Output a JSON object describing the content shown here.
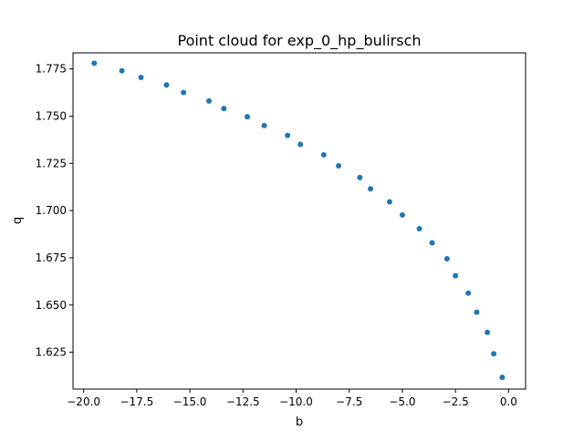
{
  "chart_data": {
    "type": "scatter",
    "title": "Point cloud for exp_0_hp_bulirsch",
    "xlabel": "b",
    "ylabel": "q",
    "xlim": [
      -20.5,
      0.8
    ],
    "ylim": [
      1.6055,
      1.7835
    ],
    "xticks": [
      -20.0,
      -17.5,
      -15.0,
      -12.5,
      -10.0,
      -7.5,
      -5.0,
      -2.5,
      0.0
    ],
    "xtick_labels": [
      "−20.0",
      "−17.5",
      "−15.0",
      "−12.5",
      "−10.0",
      "−7.5",
      "−5.0",
      "−2.5",
      "0.0"
    ],
    "yticks": [
      1.625,
      1.65,
      1.675,
      1.7,
      1.725,
      1.75,
      1.775
    ],
    "ytick_labels": [
      "1.625",
      "1.650",
      "1.675",
      "1.700",
      "1.725",
      "1.750",
      "1.775"
    ],
    "grid": false,
    "marker_color": "#1f77b4",
    "points": [
      {
        "x": -19.5,
        "y": 1.778
      },
      {
        "x": -18.2,
        "y": 1.774
      },
      {
        "x": -17.3,
        "y": 1.7705
      },
      {
        "x": -16.1,
        "y": 1.7665
      },
      {
        "x": -15.3,
        "y": 1.7625
      },
      {
        "x": -14.1,
        "y": 1.758
      },
      {
        "x": -13.4,
        "y": 1.754
      },
      {
        "x": -12.3,
        "y": 1.7497
      },
      {
        "x": -11.5,
        "y": 1.745
      },
      {
        "x": -10.4,
        "y": 1.7398
      },
      {
        "x": -9.8,
        "y": 1.735
      },
      {
        "x": -8.7,
        "y": 1.7295
      },
      {
        "x": -8.0,
        "y": 1.7237
      },
      {
        "x": -7.0,
        "y": 1.7175
      },
      {
        "x": -6.5,
        "y": 1.7115
      },
      {
        "x": -5.6,
        "y": 1.7046
      },
      {
        "x": -5.0,
        "y": 1.6977
      },
      {
        "x": -4.2,
        "y": 1.6904
      },
      {
        "x": -3.6,
        "y": 1.6829
      },
      {
        "x": -2.9,
        "y": 1.6745
      },
      {
        "x": -2.5,
        "y": 1.6655
      },
      {
        "x": -1.9,
        "y": 1.6563
      },
      {
        "x": -1.5,
        "y": 1.6462
      },
      {
        "x": -1.0,
        "y": 1.6355
      },
      {
        "x": -0.7,
        "y": 1.6242
      },
      {
        "x": -0.3,
        "y": 1.6117
      }
    ]
  }
}
